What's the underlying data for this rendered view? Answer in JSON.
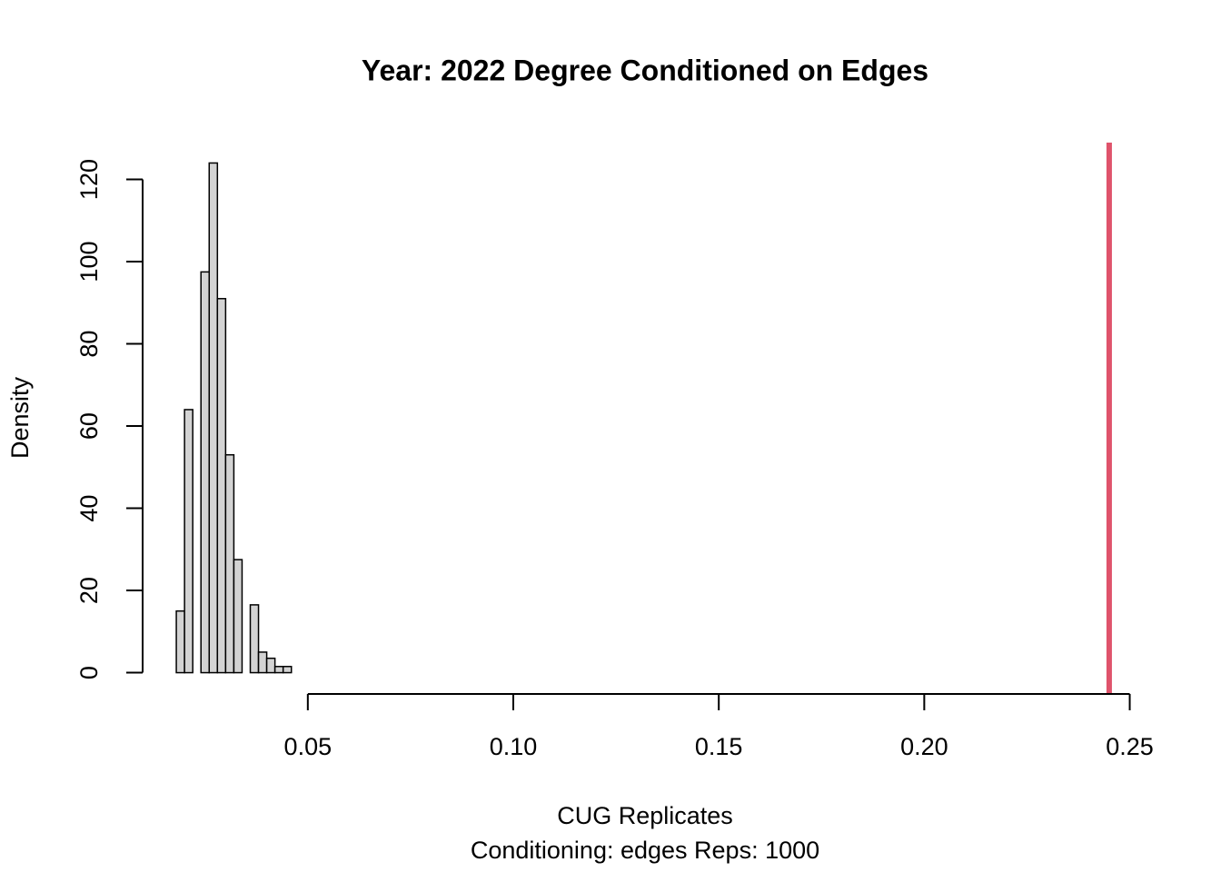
{
  "chart_data": {
    "type": "histogram",
    "title": "Year: 2022  Degree Conditioned on Edges",
    "xlabel": "CUG Replicates",
    "subtitle": "Conditioning: edges Reps: 1000",
    "ylabel": "Density",
    "bins": [
      0.018,
      0.02,
      0.022,
      0.024,
      0.026,
      0.028,
      0.03,
      0.032,
      0.034,
      0.036,
      0.038,
      0.04,
      0.042,
      0.044,
      0.046
    ],
    "values": [
      15,
      64,
      0,
      97.5,
      124,
      91,
      53,
      27.5,
      0,
      16.5,
      5,
      3.5,
      1.5,
      1.5
    ],
    "color": "#d3d3d3",
    "xlim": [
      0.00892,
      0.25408
    ],
    "ylim": [
      -4.96,
      128.96
    ],
    "xticks": [
      0.05,
      {
        "value": 0.1,
        "label": "0.10"
      },
      0.15,
      {
        "value": 0.2,
        "label": "0.20"
      },
      0.25
    ],
    "yticks": [
      0,
      20,
      40,
      60,
      80,
      100,
      120
    ],
    "vlines": [
      {
        "x": 0.245,
        "color": "#DF536B"
      }
    ]
  }
}
